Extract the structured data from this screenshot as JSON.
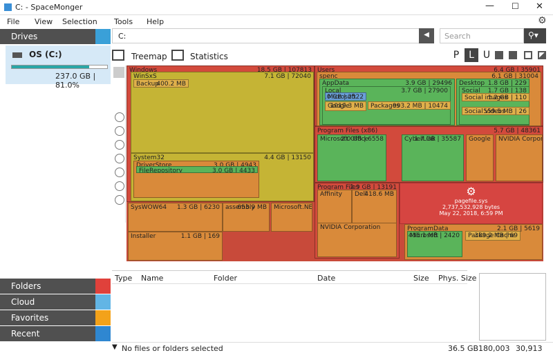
{
  "window": {
    "title": "C: - SpaceMonger"
  },
  "menu": [
    "File",
    "View",
    "Selection",
    "Tools",
    "Help"
  ],
  "sidebar": {
    "header": "Drives",
    "drive": {
      "name": "OS (C:)",
      "info": "237.0 GB  |  81.0%"
    },
    "sections": [
      "Folders",
      "Cloud",
      "Favorites",
      "Recent"
    ]
  },
  "toolbar": {
    "path": "C:",
    "search": "Search"
  },
  "tabs": [
    "Treemap",
    "Statistics"
  ],
  "view_modes": [
    "P",
    "L",
    "U"
  ],
  "treemap": {
    "blocks": [
      {
        "name": "Windows",
        "size": "18.5 GB | 107813"
      },
      {
        "name": "WinSxS",
        "size": "7.1 GB | 72040"
      },
      {
        "name": "Backup",
        "size": "400.2 MB"
      },
      {
        "name": "System32",
        "size": "4.4 GB | 13150"
      },
      {
        "name": "DriverStore",
        "size": "3.0 GB | 4943"
      },
      {
        "name": "FileRepository",
        "size": "3.0 GB | 4433"
      },
      {
        "name": "SysWOW64",
        "size": "1.3 GB | 6230"
      },
      {
        "name": "assembly",
        "size": "653.9 MB"
      },
      {
        "name": "Microsoft.NET",
        "size": ""
      },
      {
        "name": "Installer",
        "size": "1.1 GB | 169"
      },
      {
        "name": "Users",
        "size": "6.4 GB | 35901"
      },
      {
        "name": "spenc",
        "size": "6.1 GB | 31004"
      },
      {
        "name": "AppData",
        "size": "3.9 GB | 29496"
      },
      {
        "name": "Local",
        "size": "3.7 GB | 27900"
      },
      {
        "name": "Microsoft",
        "size": "1.0 GB | 2522"
      },
      {
        "name": "Google",
        "size": "1019.3 MB"
      },
      {
        "name": "Packages",
        "size": "993.2 MB | 10474"
      },
      {
        "name": "Desktop",
        "size": "1.8 GB | 229"
      },
      {
        "name": "Social",
        "size": "1.7 GB | 138"
      },
      {
        "name": "Social images",
        "size": "1.2 GB | 110"
      },
      {
        "name": "Social videos",
        "size": "559.5 MB | 26"
      },
      {
        "name": "Program Files (x86)",
        "size": "5.7 GB | 48361"
      },
      {
        "name": "Microsoft Office",
        "size": "2.0 GB | 6558"
      },
      {
        "name": "CyberLink",
        "size": "1.7 GB | 35587"
      },
      {
        "name": "Google",
        "size": ""
      },
      {
        "name": "NVIDIA Corporation",
        "size": ""
      },
      {
        "name": "Program Files",
        "size": "2.9 GB | 13191"
      },
      {
        "name": "Affinity",
        "size": ""
      },
      {
        "name": "Dell",
        "size": "418.6 MB"
      },
      {
        "name": "NVIDIA Corporation",
        "size": ""
      },
      {
        "name": "ProgramData",
        "size": "2.1 GB | 5619"
      },
      {
        "name": "Microsoft",
        "size": "435.1 MB | 2420"
      },
      {
        "name": "Package Cache",
        "size": "389.2 MB | 69"
      }
    ],
    "pagefile": {
      "name": "pagefile.sys",
      "bytes": "2,737,532,928 bytes",
      "date": "May 22, 2018, 6:59 PM"
    }
  },
  "table": {
    "columns": [
      "Type",
      "Name",
      "Folder",
      "Date",
      "Size",
      "Phys. Size"
    ]
  },
  "status": {
    "message": "No files or folders selected",
    "size": "36.5 GB",
    "files": "180,003",
    "folders": "30,913"
  }
}
